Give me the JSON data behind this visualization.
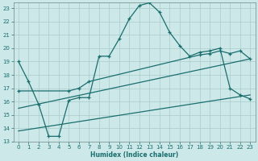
{
  "xlabel": "Humidex (Indice chaleur)",
  "bg_color": "#cce8e8",
  "grid_color": "#aacccc",
  "line_color": "#1a6e6e",
  "xlim": [
    -0.5,
    23.5
  ],
  "ylim": [
    13,
    23.4
  ],
  "xticks": [
    0,
    1,
    2,
    3,
    4,
    5,
    6,
    7,
    8,
    9,
    10,
    11,
    12,
    13,
    14,
    15,
    16,
    17,
    18,
    19,
    20,
    21,
    22,
    23
  ],
  "yticks": [
    13,
    14,
    15,
    16,
    17,
    18,
    19,
    20,
    21,
    22,
    23
  ],
  "line1_x": [
    0,
    1,
    2,
    3,
    4,
    5,
    6,
    7,
    8,
    9,
    10,
    11,
    12,
    13,
    14,
    15,
    16,
    17,
    18,
    19,
    20,
    21,
    22,
    23
  ],
  "line1_y": [
    19,
    17.5,
    15.8,
    13.4,
    13.4,
    16.1,
    16.3,
    16.3,
    19.4,
    19.4,
    20.7,
    22.2,
    23.2,
    23.4,
    22.7,
    21.2,
    20.2,
    19.4,
    19.7,
    19.8,
    20.0,
    17.0,
    16.5,
    16.2
  ],
  "line2_x": [
    0,
    5,
    6,
    7,
    18,
    19,
    20,
    21,
    22,
    23
  ],
  "line2_y": [
    16.8,
    16.8,
    17.0,
    17.5,
    19.5,
    19.6,
    19.8,
    19.6,
    19.8,
    19.2
  ],
  "line3_x": [
    0,
    23
  ],
  "line3_y": [
    15.5,
    19.2
  ],
  "line4_x": [
    0,
    23
  ],
  "line4_y": [
    13.8,
    16.5
  ]
}
